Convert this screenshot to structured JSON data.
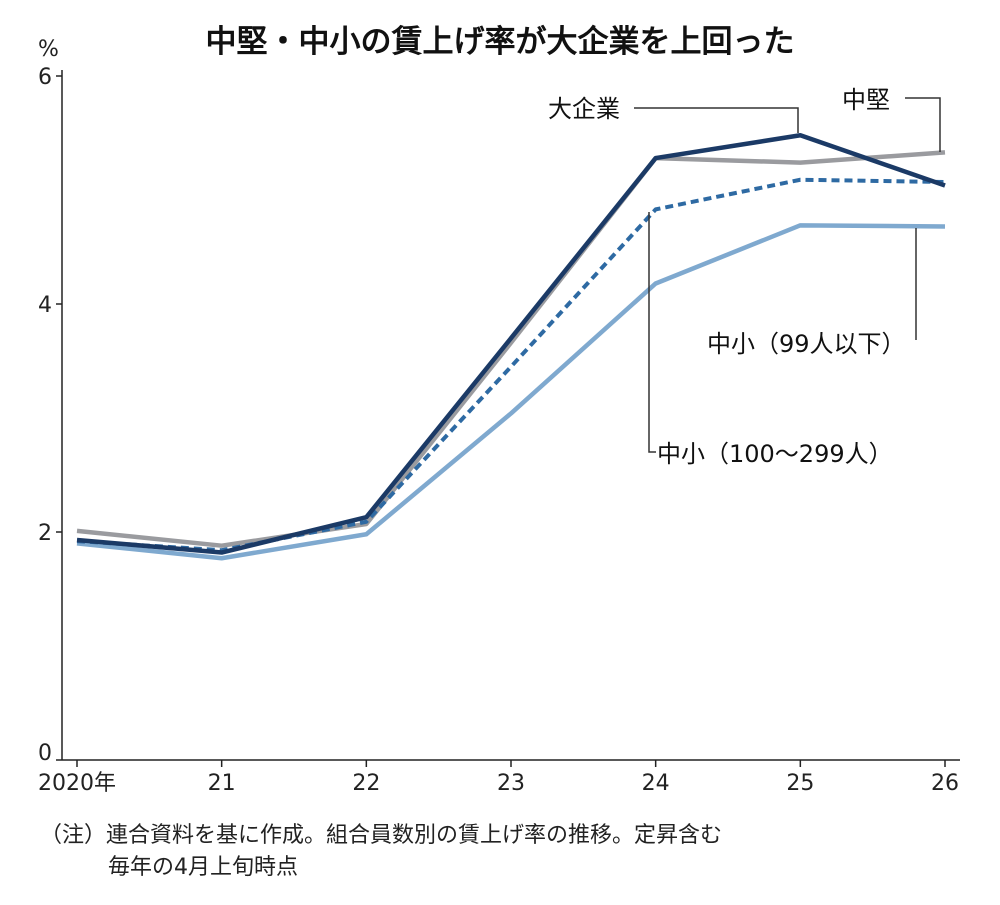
{
  "chart_data": {
    "type": "line",
    "title": "中堅・中小の賃上げ率が大企業を上回った",
    "ylabel": "%",
    "xlabel": "",
    "ylim": [
      0,
      6
    ],
    "yticks": [
      0,
      2,
      4,
      6
    ],
    "x": [
      2020,
      2021,
      2022,
      2023,
      2024,
      2025,
      2026
    ],
    "xtick_labels": [
      "2020年",
      "21",
      "22",
      "23",
      "24",
      "25",
      "26"
    ],
    "grid": false,
    "series": [
      {
        "name": "中堅",
        "color": "#9a9b9f",
        "dash": false,
        "values": [
          2.01,
          1.88,
          2.07,
          3.66,
          5.28,
          5.24,
          5.33
        ]
      },
      {
        "name": "中小（99人以下）",
        "color": "#7fa9cf",
        "dash": false,
        "values": [
          1.9,
          1.77,
          1.98,
          3.04,
          4.18,
          4.69,
          4.68
        ]
      },
      {
        "name": "中小（100〜299人）",
        "color": "#2e6aa3",
        "dash": true,
        "values": [
          1.92,
          1.84,
          2.09,
          3.45,
          4.83,
          5.09,
          5.07
        ]
      },
      {
        "name": "大企業",
        "color": "#1b3a66",
        "dash": false,
        "values": [
          1.93,
          1.82,
          2.13,
          3.7,
          5.28,
          5.48,
          5.04
        ]
      }
    ],
    "note_lines": [
      "（注）連合資料を基に作成。組合員数別の賃上げ率の推移。定昇含む",
      "毎年の4月上旬時点"
    ]
  }
}
